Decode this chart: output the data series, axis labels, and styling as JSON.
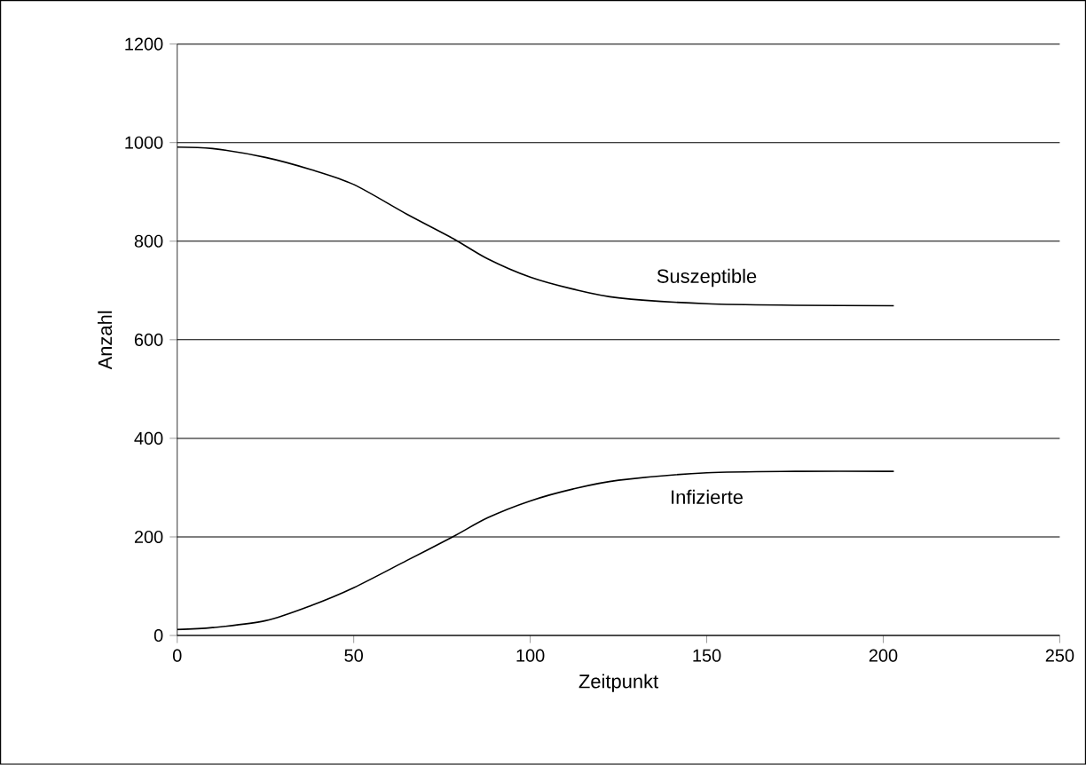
{
  "chart_data": {
    "type": "line",
    "xlabel": "Zeitpunkt",
    "ylabel": "Anzahl",
    "xlim": [
      0,
      250
    ],
    "xticks": [
      0,
      50,
      100,
      150,
      200,
      250
    ],
    "ylim": [
      0,
      1200
    ],
    "yticks": [
      0,
      200,
      400,
      600,
      800,
      1000,
      1200
    ],
    "grid": "y",
    "legend": false,
    "marker": "none",
    "line_style": "solid",
    "series": [
      {
        "name": "Suszeptible",
        "color": "#000000",
        "x": [
          0,
          10,
          25,
          38,
          50,
          65,
          78,
          88,
          100,
          112,
          125,
          150,
          175,
          203
        ],
        "values": [
          991,
          988,
          970,
          945,
          915,
          855,
          806,
          764,
          727,
          703,
          685,
          673,
          670,
          669
        ]
      },
      {
        "name": "Infizierte",
        "color": "#000000",
        "x": [
          0,
          10,
          25,
          38,
          50,
          65,
          78,
          88,
          100,
          112,
          125,
          150,
          175,
          203
        ],
        "values": [
          12,
          16,
          30,
          61,
          97,
          152,
          200,
          239,
          273,
          297,
          315,
          330,
          333,
          333
        ]
      }
    ]
  }
}
